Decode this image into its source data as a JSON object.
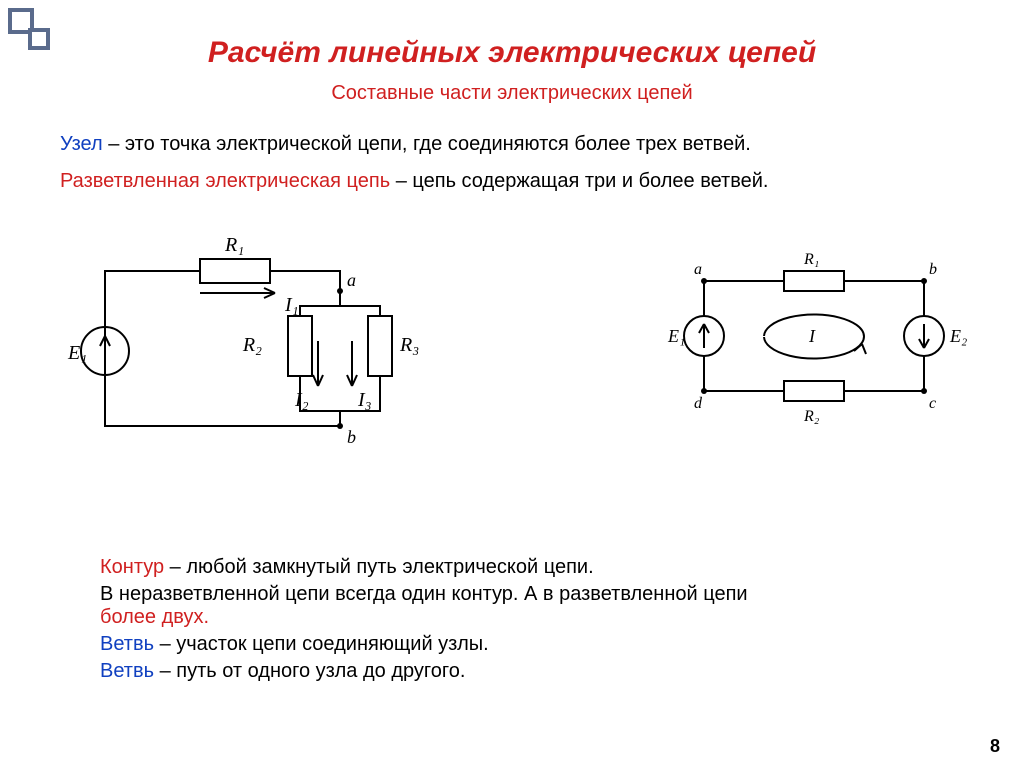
{
  "styles": {
    "title_color": "#d02020",
    "title_fontsize": 30,
    "subtitle_color": "#d02020",
    "subtitle_fontsize": 20,
    "text_color": "#000000",
    "red_term_color": "#d02020",
    "blue_term_color": "#1040c0",
    "body_fontsize": 20,
    "defs_fontsize": 20,
    "pagenum_fontsize": 18,
    "circuit_stroke": "#000000",
    "circuit_stroke_width": 2,
    "bg": "#ffffff"
  },
  "title": "Расчёт линейных электрических цепей",
  "subtitle": "Составные части электрических цепей",
  "def_node": {
    "term": "Узел",
    "rest": " – это точка электрической цепи, где соединяются более трех ветвей."
  },
  "def_branched": {
    "term": "Разветвленная электрическая цепь",
    "rest": " – цепь содержащая три и более ветвей."
  },
  "circuit1": {
    "labels": {
      "E1": "E₁",
      "R1": "R₁",
      "R2": "R₂",
      "R3": "R₃",
      "I1": "I₁",
      "I2": "I₂",
      "I3": "I₃",
      "a": "a",
      "b": "b"
    }
  },
  "circuit2": {
    "labels": {
      "E1": "E₁",
      "E2": "E₂",
      "R1": "R₁",
      "R2": "R₂",
      "a": "a",
      "b": "b",
      "c": "c",
      "d": "d",
      "I": "I"
    }
  },
  "defs": {
    "loop_term": "Контур",
    "loop_rest": " – любой замкнутый путь электрической цепи.",
    "unbranched_pre": "В неразветвленной цепи всегда один контур. А в разветвленной цепи ",
    "unbranched_red": "более двух.",
    "branch1_term": "Ветвь",
    "branch1_rest": " – участок цепи соединяющий узлы.",
    "branch2_term": "Ветвь",
    "branch2_rest": " – путь от одного узла до другого."
  },
  "page_number": "8"
}
